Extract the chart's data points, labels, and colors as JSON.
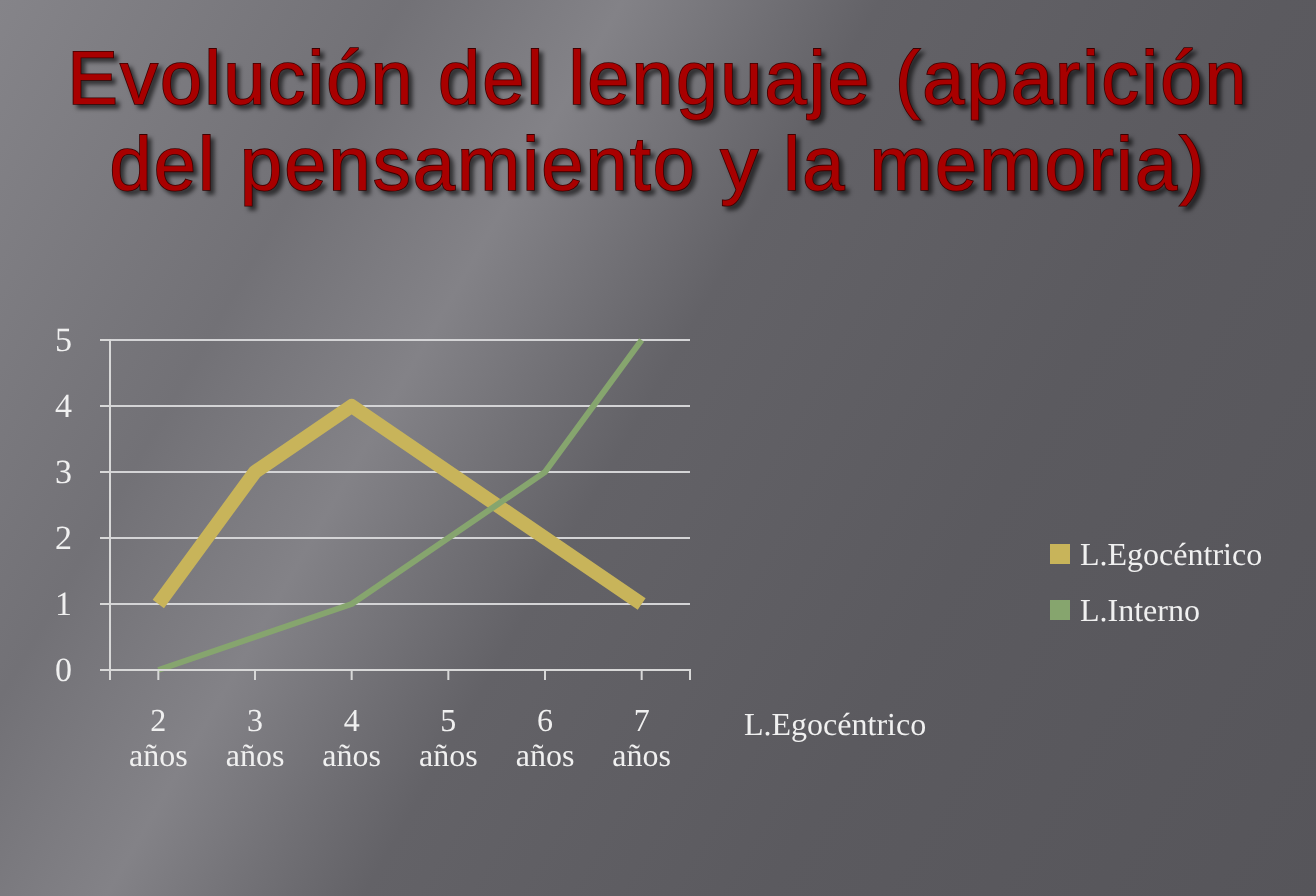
{
  "chart_data": {
    "type": "line",
    "title": "Evolución del lenguaje (aparición del pensamiento y la memoria)",
    "categories": [
      "2 años",
      "3 años",
      "4 años",
      "5 años",
      "6 años",
      "7 años"
    ],
    "series": [
      {
        "name": "L.Egocéntrico",
        "color": "#c8b45a",
        "values": [
          1,
          3,
          4,
          3,
          2,
          1
        ]
      },
      {
        "name": "L.Interno",
        "color": "#86a56e",
        "values": [
          0,
          0.5,
          1,
          2,
          3,
          5
        ]
      }
    ],
    "ylim": [
      0,
      5
    ],
    "yticks": [
      0,
      1,
      2,
      3,
      4,
      5
    ],
    "grid": "y",
    "legend": "right",
    "annotations": [
      "L.Egocéntrico"
    ]
  }
}
